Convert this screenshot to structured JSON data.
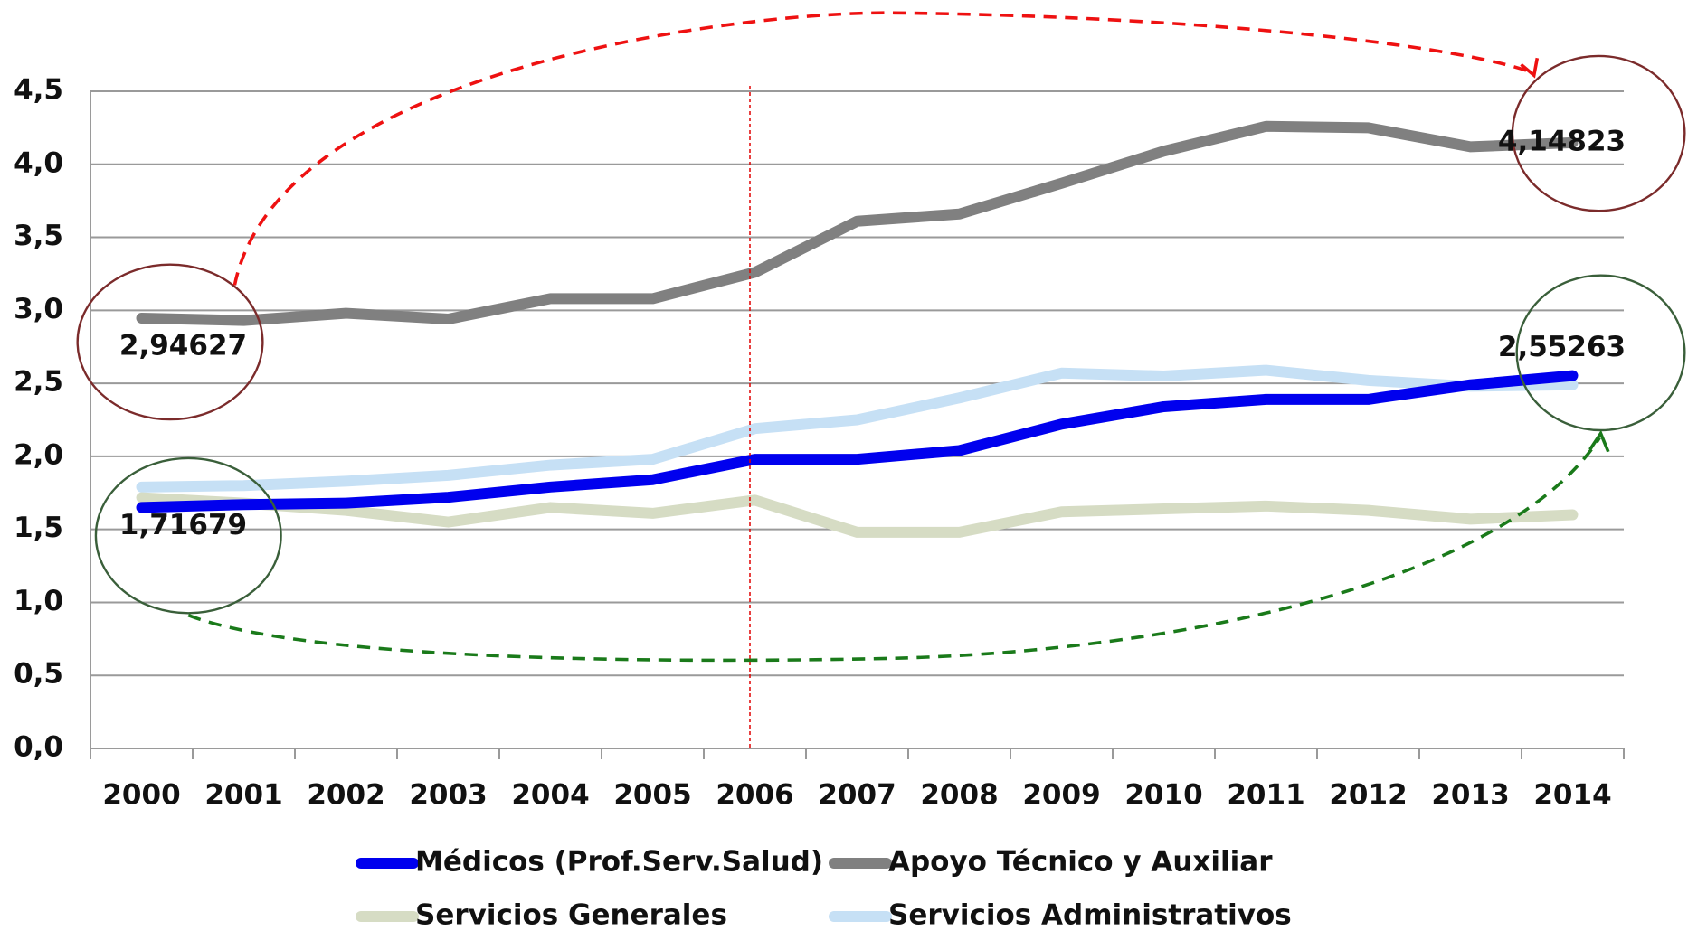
{
  "chart_data": {
    "type": "line",
    "categories": [
      "2000",
      "2001",
      "2002",
      "2003",
      "2004",
      "2005",
      "2006",
      "2007",
      "2008",
      "2009",
      "2010",
      "2011",
      "2012",
      "2013",
      "2014"
    ],
    "series": [
      {
        "name": "Médicos (Prof.Serv.Salud)",
        "color": "#0000ee",
        "values": [
          1.65,
          1.67,
          1.68,
          1.72,
          1.79,
          1.84,
          1.98,
          1.98,
          2.04,
          2.22,
          2.34,
          2.39,
          2.39,
          2.49,
          2.55263
        ],
        "value_labels": [
          null,
          null,
          null,
          null,
          null,
          null,
          null,
          null,
          null,
          null,
          null,
          null,
          null,
          null,
          "2,55263"
        ]
      },
      {
        "name": "Apoyo Técnico y Auxiliar",
        "color": "#808080",
        "values": [
          2.94627,
          2.93,
          2.98,
          2.94,
          3.08,
          3.08,
          3.26,
          3.61,
          3.66,
          3.87,
          4.09,
          4.26,
          4.25,
          4.12,
          4.14823
        ],
        "value_labels": [
          "2,94627",
          null,
          null,
          null,
          null,
          null,
          null,
          null,
          null,
          null,
          null,
          null,
          null,
          null,
          "4,14823"
        ]
      },
      {
        "name": "Servicios Generales",
        "color": "#d6dcc4",
        "values": [
          1.71679,
          1.68,
          1.63,
          1.55,
          1.65,
          1.61,
          1.7,
          1.48,
          1.48,
          1.62,
          1.64,
          1.66,
          1.63,
          1.57,
          1.6
        ],
        "value_labels": [
          "1,71679",
          null,
          null,
          null,
          null,
          null,
          null,
          null,
          null,
          null,
          null,
          null,
          null,
          null,
          null
        ]
      },
      {
        "name": "Servicios Administrativos",
        "color": "#c6e0f5",
        "values": [
          1.79,
          1.8,
          1.83,
          1.87,
          1.94,
          1.98,
          2.19,
          2.25,
          2.4,
          2.57,
          2.55,
          2.59,
          2.52,
          2.48,
          2.49
        ]
      }
    ],
    "ylim": [
      0,
      4.5
    ],
    "yticks": [
      {
        "value": 0,
        "label": "0,0"
      },
      {
        "value": 0.5,
        "label": "0,5"
      },
      {
        "value": 1,
        "label": "1,0"
      },
      {
        "value": 1.5,
        "label": "1,5"
      },
      {
        "value": 2,
        "label": "2,0"
      },
      {
        "value": 2.5,
        "label": "2,5"
      },
      {
        "value": 3,
        "label": "3,0"
      },
      {
        "value": 3.5,
        "label": "3,5"
      },
      {
        "value": 4,
        "label": "4,0"
      },
      {
        "value": 4.5,
        "label": "4,5"
      }
    ],
    "grid": true,
    "legend": "bottom"
  }
}
